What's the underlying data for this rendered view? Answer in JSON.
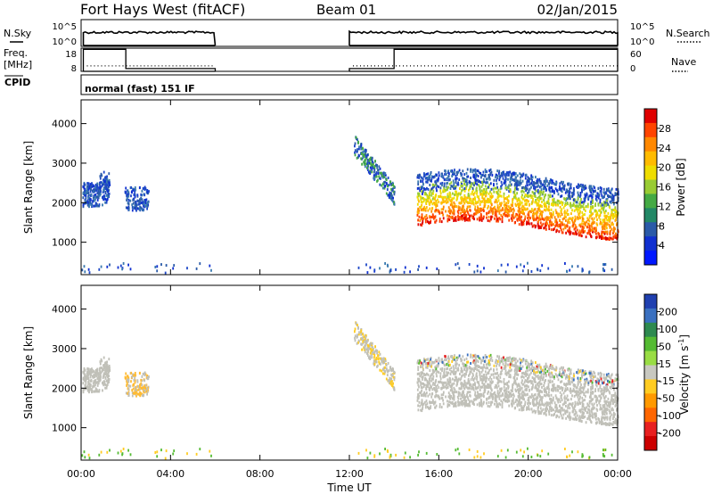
{
  "header": {
    "station": "Fort Hays West (fitACF)",
    "beam": "Beam 01",
    "date": "02/Jan/2015"
  },
  "panels": {
    "nsky_label": "N.Sky",
    "freq_label_1": "Freq.",
    "freq_label_2": "[MHz]",
    "cpid_label": "CPID",
    "cpid_text": "normal (fast) 151 IF",
    "nsearch_label": "N.Search",
    "nave_label": "Nave",
    "nsky_ticks": [
      "10^5",
      "10^0"
    ],
    "nsearch_ticks": [
      "10^5",
      "10^0"
    ],
    "freq_ticks": [
      "18",
      "8"
    ],
    "nave_ticks": [
      "60",
      "0"
    ]
  },
  "chart_data": [
    {
      "type": "line",
      "name": "noise-panel",
      "x": [
        0,
        6,
        6,
        12,
        12,
        24
      ],
      "yaxis_left": "N.Sky",
      "yaxis_right": "N.Search",
      "note_segments": [
        [
          0.1,
          6.0
        ],
        [
          12.0,
          24.0
        ]
      ]
    },
    {
      "type": "line",
      "name": "freq-panel",
      "series_freq_mhz": [
        {
          "x": [
            0.1,
            2.0
          ],
          "y": 17.5
        },
        {
          "x": [
            2.0,
            6.0
          ],
          "y": 9.2
        },
        {
          "x": [
            12.0,
            14.0
          ],
          "y": 9.2
        },
        {
          "x": [
            14.0,
            24.0
          ],
          "y": 17.5
        }
      ],
      "series_nave": [
        {
          "x": [
            0.1,
            6.0
          ],
          "y": 0.33
        },
        {
          "x": [
            12.0,
            24.0
          ],
          "y": 0.33
        }
      ],
      "ylim_freq": [
        8,
        18
      ],
      "ylim_nave": [
        0,
        60
      ]
    },
    {
      "type": "heatmap",
      "name": "power",
      "ylabel": "Slant Range [km]",
      "yticks": [
        1000,
        2000,
        3000,
        4000
      ],
      "ylim": [
        180,
        4600
      ],
      "colorbar_label": "Power [dB]",
      "colorbar_ticks": [
        "28",
        "24",
        "20",
        "16",
        "12",
        "8",
        "4"
      ],
      "colorbar_colors": [
        "#e00000",
        "#ff4400",
        "#ff8800",
        "#ffbb00",
        "#eedd00",
        "#99cc33",
        "#44aa44",
        "#228866",
        "#2a5aa8",
        "#1030d0",
        "#0018ff"
      ]
    },
    {
      "type": "heatmap",
      "name": "velocity",
      "ylabel": "Slant Range [km]",
      "yticks": [
        1000,
        2000,
        3000,
        4000
      ],
      "ylim": [
        180,
        4600
      ],
      "colorbar_label": "Velocity [m s^-1]",
      "colorbar_ticks": [
        "200",
        "100",
        "50",
        "15",
        "-15",
        "-50",
        "-100",
        "-200"
      ],
      "colorbar_colors": [
        "#2040b0",
        "#3a70c0",
        "#2e8a50",
        "#55bb33",
        "#99dd44",
        "#c8c8c0",
        "#ffcc22",
        "#ff9900",
        "#ff6600",
        "#e82020",
        "#cc0000"
      ]
    }
  ],
  "xaxis": {
    "label": "Time UT",
    "ticks": [
      "00:00",
      "04:00",
      "08:00",
      "12:00",
      "16:00",
      "20:00",
      "00:00"
    ]
  },
  "colors": {
    "ground_scatter": "#c0c0b8",
    "axis": "#000000"
  }
}
